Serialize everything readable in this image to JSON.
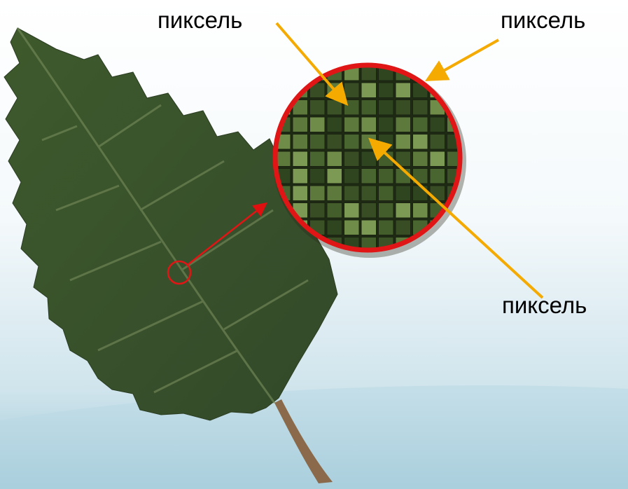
{
  "labels": [
    "пиксель",
    "пиксель",
    "пиксель"
  ]
}
